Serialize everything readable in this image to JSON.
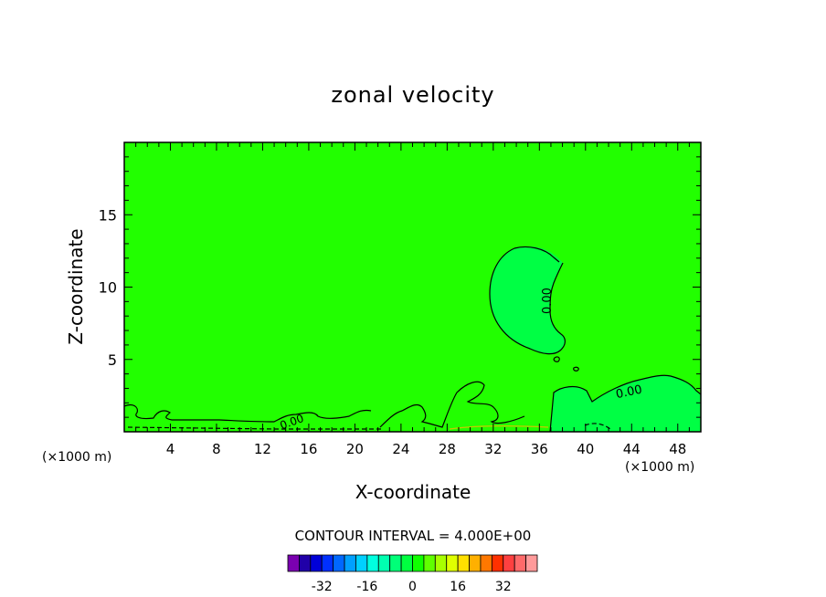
{
  "chart_data": {
    "type": "contour",
    "title": "zonal velocity",
    "xlabel": "X-coordinate",
    "ylabel": "Z-coordinate",
    "x_unit_note": "(×1000 m)",
    "x_unit_note_right": "(×1000 m)",
    "xlim": [
      0,
      50
    ],
    "ylim": [
      0,
      20
    ],
    "xticks": [
      4,
      8,
      12,
      16,
      20,
      24,
      28,
      32,
      36,
      40,
      44,
      48
    ],
    "yticks": [
      5,
      10,
      15
    ],
    "contour_label": "0.00",
    "contour_interval_text": "CONTOUR INTERVAL = 4.000E+00",
    "background_level": 0,
    "regions": [
      {
        "name": "positive-bubble",
        "level": 4,
        "center": [
          34.5,
          9.5
        ]
      },
      {
        "name": "near-surface-right",
        "level": 4,
        "x_range": [
          37,
          50
        ]
      }
    ],
    "colorbar": {
      "colors": [
        "#7a00b0",
        "#2000a8",
        "#0000d8",
        "#0030ff",
        "#0068ff",
        "#00a0ff",
        "#00d0ff",
        "#00ffe0",
        "#00ffb0",
        "#00ff78",
        "#00ff40",
        "#10ff00",
        "#60ff00",
        "#a8ff00",
        "#e0ff00",
        "#ffe000",
        "#ffb000",
        "#ff7800",
        "#ff3000",
        "#ff4040",
        "#ff6a6a",
        "#ff9a9a"
      ],
      "tick_labels": [
        "-32",
        "-16",
        "0",
        "16",
        "32"
      ],
      "tick_values": [
        -32,
        -16,
        0,
        16,
        32
      ],
      "min": -44,
      "max": 44
    },
    "colors": {
      "field": "#22ff00",
      "positive_region": "#00ff44",
      "contour": "#000000"
    }
  }
}
